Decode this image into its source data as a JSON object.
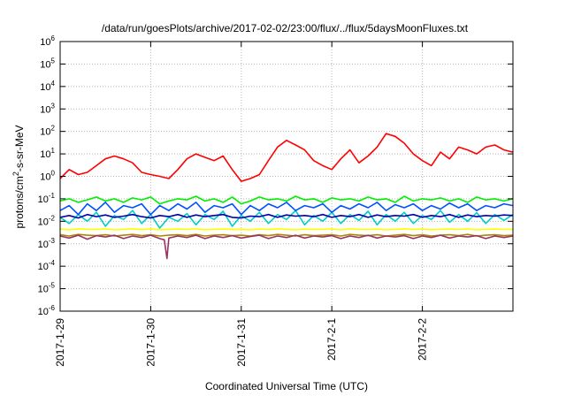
{
  "chart_data": {
    "type": "line",
    "title": "/data/run/goesPlots/archive/2017-02-02/23:00/flux/../flux/5daysMoonFluxes.txt",
    "xlabel": "Coordinated Universal Time (UTC)",
    "ylabel": "protons/cm2-s-sr-MeV",
    "ylabel_main": "protons/cm",
    "ylabel_sup": "2",
    "ylabel_tail": "-s-sr-MeV",
    "yscale": "log",
    "ylim": [
      1e-06,
      1000000.0
    ],
    "xlim": [
      0,
      5
    ],
    "grid": true,
    "legend": "none",
    "x_ticks": [
      {
        "x": 0,
        "label": "2017-1-29"
      },
      {
        "x": 1,
        "label": "2017-1-30"
      },
      {
        "x": 2,
        "label": "2017-1-31"
      },
      {
        "x": 3,
        "label": "2017-2-1"
      },
      {
        "x": 4,
        "label": "2017-2-2"
      }
    ],
    "y_ticks": [
      {
        "exp": -6,
        "base": "10",
        "sup": "-6"
      },
      {
        "exp": -5,
        "base": "10",
        "sup": "-5"
      },
      {
        "exp": -4,
        "base": "10",
        "sup": "-4"
      },
      {
        "exp": -3,
        "base": "10",
        "sup": "-3"
      },
      {
        "exp": -2,
        "base": "10",
        "sup": "-2"
      },
      {
        "exp": -1,
        "base": "10",
        "sup": "-1"
      },
      {
        "exp": 0,
        "base": "10",
        "sup": "0"
      },
      {
        "exp": 1,
        "base": "10",
        "sup": "1"
      },
      {
        "exp": 2,
        "base": "10",
        "sup": "2"
      },
      {
        "exp": 3,
        "base": "10",
        "sup": "3"
      },
      {
        "exp": 4,
        "base": "10",
        "sup": "4"
      },
      {
        "exp": 5,
        "base": "10",
        "sup": "5"
      },
      {
        "exp": 6,
        "base": "10",
        "sup": "6"
      }
    ],
    "series": [
      {
        "color": "#ff0000",
        "x": [
          0,
          0.1,
          0.2,
          0.3,
          0.4,
          0.5,
          0.6,
          0.7,
          0.8,
          0.9,
          1.0,
          1.1,
          1.2,
          1.3,
          1.4,
          1.5,
          1.6,
          1.7,
          1.8,
          1.9,
          2.0,
          2.1,
          2.2,
          2.3,
          2.4,
          2.5,
          2.6,
          2.7,
          2.8,
          2.9,
          3.0,
          3.1,
          3.2,
          3.3,
          3.4,
          3.5,
          3.6,
          3.7,
          3.8,
          3.9,
          4.0,
          4.1,
          4.2,
          4.3,
          4.4,
          4.5,
          4.6,
          4.7,
          4.8,
          4.9,
          5.0
        ],
        "y": [
          0.8,
          2,
          1.2,
          1.5,
          3,
          6,
          8,
          6,
          4,
          1.5,
          1.2,
          1,
          0.8,
          2,
          6,
          10,
          7,
          5,
          8,
          2,
          0.6,
          0.8,
          1.2,
          5,
          20,
          40,
          25,
          15,
          5,
          3,
          2,
          6,
          15,
          4,
          8,
          20,
          80,
          60,
          30,
          10,
          5,
          3,
          12,
          6,
          20,
          15,
          10,
          20,
          25,
          15,
          12
        ]
      },
      {
        "color": "#00ee00",
        "x": [
          0,
          0.1,
          0.2,
          0.3,
          0.4,
          0.5,
          0.6,
          0.7,
          0.8,
          0.9,
          1.0,
          1.1,
          1.2,
          1.3,
          1.4,
          1.5,
          1.6,
          1.7,
          1.8,
          1.9,
          2.0,
          2.1,
          2.2,
          2.3,
          2.4,
          2.5,
          2.6,
          2.7,
          2.8,
          2.9,
          3.0,
          3.1,
          3.2,
          3.3,
          3.4,
          3.5,
          3.6,
          3.7,
          3.8,
          3.9,
          4.0,
          4.1,
          4.2,
          4.3,
          4.4,
          4.5,
          4.6,
          4.7,
          4.8,
          4.9,
          5.0
        ],
        "y": [
          0.08,
          0.1,
          0.07,
          0.09,
          0.12,
          0.08,
          0.1,
          0.07,
          0.11,
          0.09,
          0.12,
          0.06,
          0.08,
          0.1,
          0.09,
          0.13,
          0.08,
          0.1,
          0.07,
          0.12,
          0.06,
          0.08,
          0.12,
          0.09,
          0.1,
          0.08,
          0.13,
          0.09,
          0.1,
          0.07,
          0.11,
          0.09,
          0.1,
          0.08,
          0.12,
          0.09,
          0.1,
          0.07,
          0.13,
          0.08,
          0.1,
          0.09,
          0.11,
          0.08,
          0.1,
          0.07,
          0.12,
          0.09,
          0.1,
          0.08,
          0.1
        ]
      },
      {
        "color": "#00cccc",
        "x": [
          0,
          0.1,
          0.2,
          0.3,
          0.4,
          0.5,
          0.6,
          0.7,
          0.8,
          0.9,
          1.0,
          1.1,
          1.2,
          1.3,
          1.4,
          1.5,
          1.6,
          1.7,
          1.8,
          1.9,
          2.0,
          2.1,
          2.2,
          2.3,
          2.4,
          2.5,
          2.6,
          2.7,
          2.8,
          2.9,
          3.0,
          3.1,
          3.2,
          3.3,
          3.4,
          3.5,
          3.6,
          3.7,
          3.8,
          3.9,
          4.0,
          4.1,
          4.2,
          4.3,
          4.4,
          4.5,
          4.6,
          4.7,
          4.8,
          4.9,
          5.0
        ],
        "y": [
          0.015,
          0.008,
          0.02,
          0.01,
          0.025,
          0.006,
          0.018,
          0.012,
          0.03,
          0.008,
          0.02,
          0.005,
          0.015,
          0.01,
          0.022,
          0.007,
          0.02,
          0.012,
          0.028,
          0.006,
          0.018,
          0.01,
          0.025,
          0.008,
          0.02,
          0.012,
          0.03,
          0.007,
          0.018,
          0.01,
          0.025,
          0.008,
          0.02,
          0.011,
          0.028,
          0.007,
          0.02,
          0.01,
          0.025,
          0.008,
          0.018,
          0.012,
          0.03,
          0.009,
          0.02,
          0.01,
          0.024,
          0.008,
          0.02,
          0.011,
          0.02
        ]
      },
      {
        "color": "#0050ff",
        "x": [
          0,
          0.1,
          0.2,
          0.3,
          0.4,
          0.5,
          0.6,
          0.7,
          0.8,
          0.9,
          1.0,
          1.1,
          1.2,
          1.3,
          1.4,
          1.5,
          1.6,
          1.7,
          1.8,
          1.9,
          2.0,
          2.1,
          2.2,
          2.3,
          2.4,
          2.5,
          2.6,
          2.7,
          2.8,
          2.9,
          3.0,
          3.1,
          3.2,
          3.3,
          3.4,
          3.5,
          3.6,
          3.7,
          3.8,
          3.9,
          4.0,
          4.1,
          4.2,
          4.3,
          4.4,
          4.5,
          4.6,
          4.7,
          4.8,
          4.9,
          5.0
        ],
        "y": [
          0.03,
          0.05,
          0.02,
          0.06,
          0.03,
          0.07,
          0.025,
          0.05,
          0.04,
          0.06,
          0.02,
          0.05,
          0.03,
          0.06,
          0.035,
          0.07,
          0.025,
          0.05,
          0.04,
          0.06,
          0.02,
          0.05,
          0.03,
          0.06,
          0.04,
          0.07,
          0.03,
          0.05,
          0.04,
          0.06,
          0.025,
          0.05,
          0.035,
          0.06,
          0.04,
          0.07,
          0.03,
          0.055,
          0.04,
          0.06,
          0.03,
          0.05,
          0.035,
          0.065,
          0.04,
          0.06,
          0.03,
          0.05,
          0.04,
          0.06,
          0.05
        ]
      },
      {
        "color": "#0000aa",
        "x": [
          0,
          0.1,
          0.2,
          0.3,
          0.4,
          0.5,
          0.6,
          0.7,
          0.8,
          0.9,
          1.0,
          1.1,
          1.2,
          1.3,
          1.4,
          1.5,
          1.6,
          1.7,
          1.8,
          1.9,
          2.0,
          2.1,
          2.2,
          2.3,
          2.4,
          2.5,
          2.6,
          2.7,
          2.8,
          2.9,
          3.0,
          3.1,
          3.2,
          3.3,
          3.4,
          3.5,
          3.6,
          3.7,
          3.8,
          3.9,
          4.0,
          4.1,
          4.2,
          4.3,
          4.4,
          4.5,
          4.6,
          4.7,
          4.8,
          4.9,
          5.0
        ],
        "y": [
          0.015,
          0.018,
          0.014,
          0.02,
          0.016,
          0.019,
          0.015,
          0.017,
          0.02,
          0.016,
          0.014,
          0.018,
          0.016,
          0.02,
          0.015,
          0.019,
          0.016,
          0.018,
          0.02,
          0.015,
          0.014,
          0.017,
          0.016,
          0.02,
          0.015,
          0.019,
          0.017,
          0.018,
          0.016,
          0.02,
          0.015,
          0.018,
          0.016,
          0.02,
          0.015,
          0.019,
          0.016,
          0.018,
          0.017,
          0.02,
          0.015,
          0.018,
          0.016,
          0.02,
          0.015,
          0.019,
          0.016,
          0.018,
          0.017,
          0.019,
          0.018
        ]
      },
      {
        "color": "#ffff00",
        "x": [
          0,
          0.1,
          0.2,
          0.3,
          0.4,
          0.5,
          0.6,
          0.7,
          0.8,
          0.9,
          1.0,
          1.1,
          1.2,
          1.3,
          1.4,
          1.5,
          1.6,
          1.7,
          1.8,
          1.9,
          2.0,
          2.1,
          2.2,
          2.3,
          2.4,
          2.5,
          2.6,
          2.7,
          2.8,
          2.9,
          3.0,
          3.1,
          3.2,
          3.3,
          3.4,
          3.5,
          3.6,
          3.7,
          3.8,
          3.9,
          4.0,
          4.1,
          4.2,
          4.3,
          4.4,
          4.5,
          4.6,
          4.7,
          4.8,
          4.9,
          5.0
        ],
        "y": [
          0.0045,
          0.0042,
          0.0046,
          0.0044,
          0.0043,
          0.0045,
          0.0042,
          0.0044,
          0.0046,
          0.0043,
          0.0045,
          0.0042,
          0.0044,
          0.0045,
          0.0043,
          0.0046,
          0.0042,
          0.0044,
          0.0045,
          0.0043,
          0.0044,
          0.0042,
          0.0045,
          0.0043,
          0.0046,
          0.0044,
          0.0042,
          0.0045,
          0.0043,
          0.0044,
          0.0045,
          0.0042,
          0.0046,
          0.0044,
          0.0043,
          0.0045,
          0.0042,
          0.0044,
          0.0046,
          0.0043,
          0.0045,
          0.0042,
          0.0044,
          0.0045,
          0.0043,
          0.0046,
          0.0042,
          0.0044,
          0.0045,
          0.0043,
          0.0044
        ]
      },
      {
        "color": "#aa8800",
        "x": [
          0,
          0.1,
          0.2,
          0.3,
          0.4,
          0.5,
          0.6,
          0.7,
          0.8,
          0.9,
          1.0,
          1.1,
          1.2,
          1.3,
          1.4,
          1.5,
          1.6,
          1.7,
          1.8,
          1.9,
          2.0,
          2.1,
          2.2,
          2.3,
          2.4,
          2.5,
          2.6,
          2.7,
          2.8,
          2.9,
          3.0,
          3.1,
          3.2,
          3.3,
          3.4,
          3.5,
          3.6,
          3.7,
          3.8,
          3.9,
          4.0,
          4.1,
          4.2,
          4.3,
          4.4,
          4.5,
          4.6,
          4.7,
          4.8,
          4.9,
          5.0
        ],
        "y": [
          0.0025,
          0.0022,
          0.0026,
          0.0024,
          0.0023,
          0.0025,
          0.0022,
          0.0024,
          0.0026,
          0.0023,
          0.0025,
          0.0022,
          0.0024,
          0.0025,
          0.0023,
          0.0026,
          0.0022,
          0.0024,
          0.0025,
          0.0023,
          0.0024,
          0.0022,
          0.0025,
          0.0023,
          0.0026,
          0.0024,
          0.0022,
          0.0025,
          0.0023,
          0.0024,
          0.0025,
          0.0022,
          0.0026,
          0.0024,
          0.0023,
          0.0025,
          0.0022,
          0.0024,
          0.0026,
          0.0023,
          0.0025,
          0.0022,
          0.0024,
          0.0025,
          0.0023,
          0.0026,
          0.0022,
          0.0024,
          0.0025,
          0.0023,
          0.0024
        ]
      },
      {
        "color": "#993366",
        "x": [
          0,
          0.1,
          0.2,
          0.3,
          0.4,
          0.5,
          0.6,
          0.7,
          0.8,
          0.9,
          1.0,
          1.1,
          1.15,
          1.18,
          1.2,
          1.3,
          1.4,
          1.5,
          1.6,
          1.7,
          1.8,
          1.9,
          2.0,
          2.1,
          2.2,
          2.3,
          2.4,
          2.5,
          2.6,
          2.7,
          2.8,
          2.9,
          3.0,
          3.1,
          3.2,
          3.3,
          3.4,
          3.5,
          3.6,
          3.7,
          3.8,
          3.9,
          4.0,
          4.1,
          4.2,
          4.3,
          4.4,
          4.5,
          4.6,
          4.7,
          4.8,
          4.9,
          5.0
        ],
        "y": [
          0.0022,
          0.0018,
          0.0024,
          0.0016,
          0.0023,
          0.002,
          0.0024,
          0.0017,
          0.0022,
          0.0019,
          0.0024,
          0.0017,
          0.0015,
          0.00022,
          0.0018,
          0.0022,
          0.0019,
          0.0024,
          0.0017,
          0.0022,
          0.0019,
          0.0023,
          0.0018,
          0.0021,
          0.0024,
          0.0017,
          0.0022,
          0.0019,
          0.0024,
          0.0018,
          0.0022,
          0.002,
          0.0023,
          0.0017,
          0.0022,
          0.0019,
          0.0024,
          0.0018,
          0.0022,
          0.002,
          0.0023,
          0.0017,
          0.0022,
          0.0019,
          0.0024,
          0.0018,
          0.0022,
          0.002,
          0.0023,
          0.0017,
          0.0022,
          0.0019,
          0.0022
        ]
      }
    ]
  }
}
